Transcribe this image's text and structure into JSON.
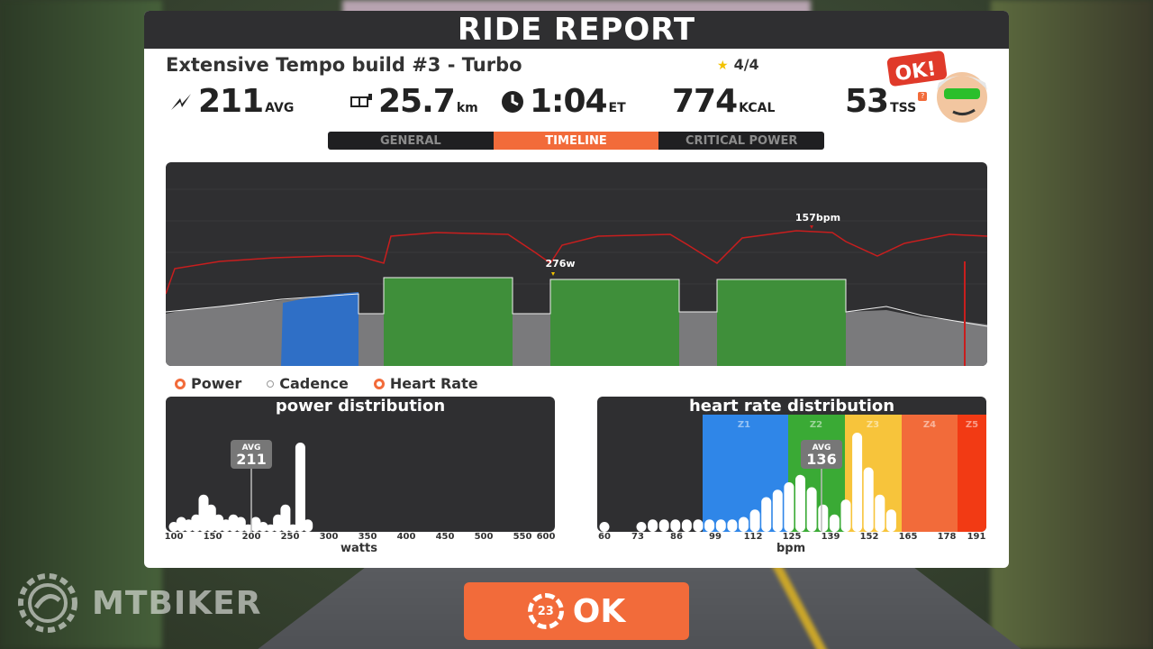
{
  "header": {
    "title": "RIDE REPORT"
  },
  "workout": {
    "name": "Extensive Tempo build #3 - Turbo",
    "rating": "4/4"
  },
  "stats": {
    "power": {
      "value": "211",
      "unit": "AVG"
    },
    "distance": {
      "value": "25.7",
      "unit": "km"
    },
    "time": {
      "value": "1:04",
      "unit": "ET"
    },
    "energy": {
      "value": "774",
      "unit": "KCAL"
    },
    "tss": {
      "value": "53",
      "unit": "TSS",
      "help": "?"
    }
  },
  "avatar": {
    "badge": "OK!"
  },
  "tabs": [
    {
      "label": "GENERAL",
      "active": false
    },
    {
      "label": "TIMELINE",
      "active": true
    },
    {
      "label": "CRITICAL POWER",
      "active": false
    }
  ],
  "timeline": {
    "hr_peak_label": "157bpm",
    "power_peak_label": "276w"
  },
  "legend": [
    {
      "label": "Power",
      "on": true
    },
    {
      "label": "Cadence",
      "on": false
    },
    {
      "label": "Heart Rate",
      "on": true
    }
  ],
  "power_distribution": {
    "title": "power distribution",
    "avg_label": "AVG",
    "avg_value": "211",
    "ticks": [
      "100",
      "150",
      "200",
      "250",
      "300",
      "350",
      "400",
      "450",
      "500",
      "550",
      "600"
    ],
    "xlabel": "watts"
  },
  "hr_distribution": {
    "title": "heart rate distribution",
    "avg_label": "AVG",
    "avg_value": "136",
    "zones": [
      "Z1",
      "Z2",
      "Z3",
      "Z4",
      "Z5"
    ],
    "ticks": [
      "60",
      "73",
      "86",
      "99",
      "112",
      "125",
      "139",
      "152",
      "165",
      "178",
      "191"
    ],
    "xlabel": "bpm"
  },
  "ok_button": {
    "label": "OK",
    "ring_label": "23"
  },
  "watermark": {
    "text": "MTBIKER"
  },
  "colors": {
    "accent": "#f26b3a",
    "panel_dark": "#2f2f31",
    "z1": "#2f86e8",
    "z2": "#3aaa35",
    "z3": "#f7c43b",
    "z4": "#f26b3a",
    "z5": "#f23a14"
  },
  "chart_data": [
    {
      "type": "bar",
      "title": "power distribution",
      "xlabel": "watts",
      "x": [
        100,
        110,
        120,
        130,
        140,
        150,
        160,
        170,
        180,
        190,
        200,
        210,
        220,
        230,
        240,
        250,
        260,
        270,
        280
      ],
      "values": [
        8,
        12,
        10,
        14,
        30,
        22,
        14,
        10,
        14,
        12,
        6,
        12,
        8,
        6,
        14,
        22,
        6,
        72,
        10
      ]
    },
    {
      "type": "bar",
      "title": "heart rate distribution",
      "xlabel": "bpm",
      "x": [
        60,
        73,
        77,
        81,
        85,
        89,
        93,
        97,
        101,
        105,
        109,
        113,
        117,
        121,
        125,
        129,
        133,
        137,
        141,
        145,
        149,
        153,
        157,
        161
      ],
      "values": [
        8,
        8,
        10,
        10,
        10,
        10,
        10,
        10,
        10,
        10,
        12,
        18,
        28,
        34,
        40,
        46,
        36,
        22,
        14,
        26,
        80,
        52,
        30,
        18
      ]
    }
  ]
}
